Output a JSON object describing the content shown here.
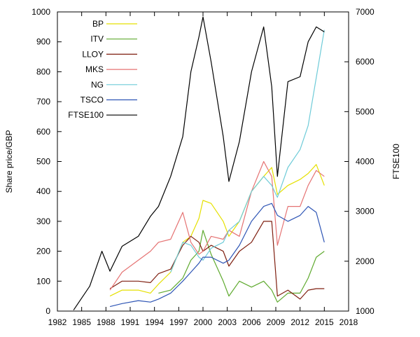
{
  "chart_data": {
    "type": "line",
    "title": "",
    "xlabel": "",
    "ylabel": "Share price/GBP",
    "y2label": "FTSE100",
    "xlim": [
      1982,
      2018
    ],
    "ylim": [
      0,
      1000
    ],
    "y2lim": [
      1000,
      7000
    ],
    "x_ticks": [
      1982,
      1985,
      1988,
      1991,
      1994,
      1997,
      2000,
      2003,
      2006,
      2009,
      2012,
      2015,
      2018
    ],
    "y_ticks": [
      0,
      100,
      200,
      300,
      400,
      500,
      600,
      700,
      800,
      900,
      1000
    ],
    "y2_ticks": [
      1000,
      2000,
      3000,
      4000,
      5000,
      6000,
      7000
    ],
    "grid": false,
    "legend_position": "top-left",
    "x": [
      1984.0,
      1986.0,
      1987.5,
      1988.5,
      1990.0,
      1992.0,
      1993.5,
      1994.5,
      1996.0,
      1997.5,
      1998.5,
      1999.5,
      2000.0,
      2001.0,
      2002.5,
      2003.2,
      2004.5,
      2006.0,
      2007.5,
      2008.5,
      2009.2,
      2010.5,
      2012.0,
      2013.0,
      2014.0,
      2015.0
    ],
    "series": [
      {
        "name": "BP",
        "color": "#e5e000",
        "axis": "left",
        "values": [
          null,
          null,
          null,
          50,
          70,
          70,
          60,
          90,
          130,
          230,
          250,
          310,
          370,
          360,
          300,
          250,
          300,
          400,
          450,
          480,
          390,
          420,
          440,
          460,
          490,
          420
        ]
      },
      {
        "name": "ITV",
        "color": "#5faa2f",
        "axis": "left",
        "values": [
          null,
          null,
          null,
          null,
          null,
          null,
          null,
          60,
          70,
          110,
          170,
          200,
          270,
          190,
          100,
          50,
          100,
          80,
          100,
          70,
          30,
          60,
          60,
          110,
          180,
          200
        ]
      },
      {
        "name": "LLOY",
        "color": "#7f1f10",
        "axis": "left",
        "values": [
          null,
          null,
          null,
          75,
          100,
          100,
          95,
          125,
          140,
          220,
          250,
          230,
          200,
          220,
          200,
          150,
          200,
          230,
          300,
          300,
          50,
          70,
          40,
          70,
          75,
          75
        ]
      },
      {
        "name": "MKS",
        "color": "#e57373",
        "axis": "left",
        "values": [
          null,
          null,
          null,
          70,
          130,
          170,
          200,
          230,
          240,
          330,
          230,
          190,
          200,
          250,
          240,
          270,
          250,
          400,
          500,
          450,
          220,
          350,
          350,
          420,
          470,
          450
        ]
      },
      {
        "name": "NG",
        "color": "#6ecbd8",
        "axis": "left",
        "values": [
          null,
          null,
          null,
          null,
          null,
          null,
          null,
          null,
          130,
          230,
          220,
          180,
          170,
          210,
          230,
          270,
          300,
          400,
          450,
          420,
          380,
          480,
          540,
          620,
          780,
          940
        ]
      },
      {
        "name": "TSCO",
        "color": "#2e55b5",
        "axis": "left",
        "values": [
          null,
          null,
          null,
          15,
          25,
          35,
          30,
          40,
          60,
          100,
          130,
          160,
          180,
          180,
          160,
          170,
          220,
          300,
          350,
          360,
          320,
          300,
          320,
          350,
          330,
          230
        ]
      },
      {
        "name": "FTSE100",
        "color": "#000000",
        "axis": "right",
        "values": [
          1020,
          1500,
          2200,
          1800,
          2300,
          2500,
          2900,
          3100,
          3700,
          4500,
          5800,
          6500,
          6900,
          6000,
          4500,
          3600,
          4400,
          5800,
          6700,
          5500,
          3700,
          5600,
          5700,
          6400,
          6700,
          6600
        ]
      }
    ]
  }
}
